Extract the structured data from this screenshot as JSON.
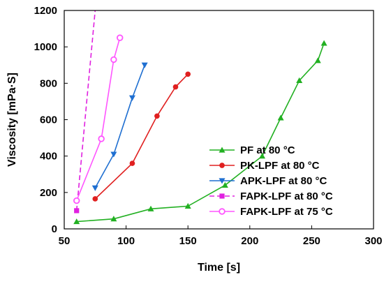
{
  "chart_data": {
    "type": "line",
    "xlabel": "Time [s]",
    "ylabel": "Viscosity [mPa·S]",
    "xlim": [
      50,
      300
    ],
    "ylim": [
      0,
      1200
    ],
    "xticks": [
      "50",
      "100",
      "150",
      "200",
      "250",
      "300"
    ],
    "yticks": [
      "0",
      "200",
      "400",
      "600",
      "800",
      "1000",
      "1200"
    ],
    "grid": false,
    "legend_position": "inside-right",
    "series": [
      {
        "name": "PF at 80 °C",
        "color": "#22b022",
        "marker": "triangle-up",
        "dash": "solid",
        "x": [
          60,
          90,
          120,
          150,
          180,
          210,
          225,
          240,
          255,
          260
        ],
        "y": [
          40,
          55,
          110,
          125,
          240,
          400,
          610,
          815,
          925,
          1020
        ]
      },
      {
        "name": "PK-LPF at 80 °C",
        "color": "#e02020",
        "marker": "circle",
        "dash": "solid",
        "x": [
          75,
          105,
          125,
          140,
          150
        ],
        "y": [
          165,
          360,
          620,
          780,
          850
        ]
      },
      {
        "name": "APK-LPF at 80 °C",
        "color": "#1f6fd1",
        "marker": "triangle-down",
        "dash": "solid",
        "x": [
          75,
          90,
          105,
          115
        ],
        "y": [
          225,
          410,
          720,
          900
        ]
      },
      {
        "name": "FAPK-LPF at 80 °C",
        "color": "#e020e0",
        "marker": "square",
        "dash": "dashed",
        "x": [
          60,
          75
        ],
        "y": [
          100,
          1200
        ]
      },
      {
        "name": "FAPK-LPF at 75 °C",
        "color": "#ff55ff",
        "marker": "circle-open",
        "dash": "solid",
        "x": [
          60,
          80,
          90,
          95
        ],
        "y": [
          155,
          495,
          930,
          1050
        ]
      }
    ]
  }
}
